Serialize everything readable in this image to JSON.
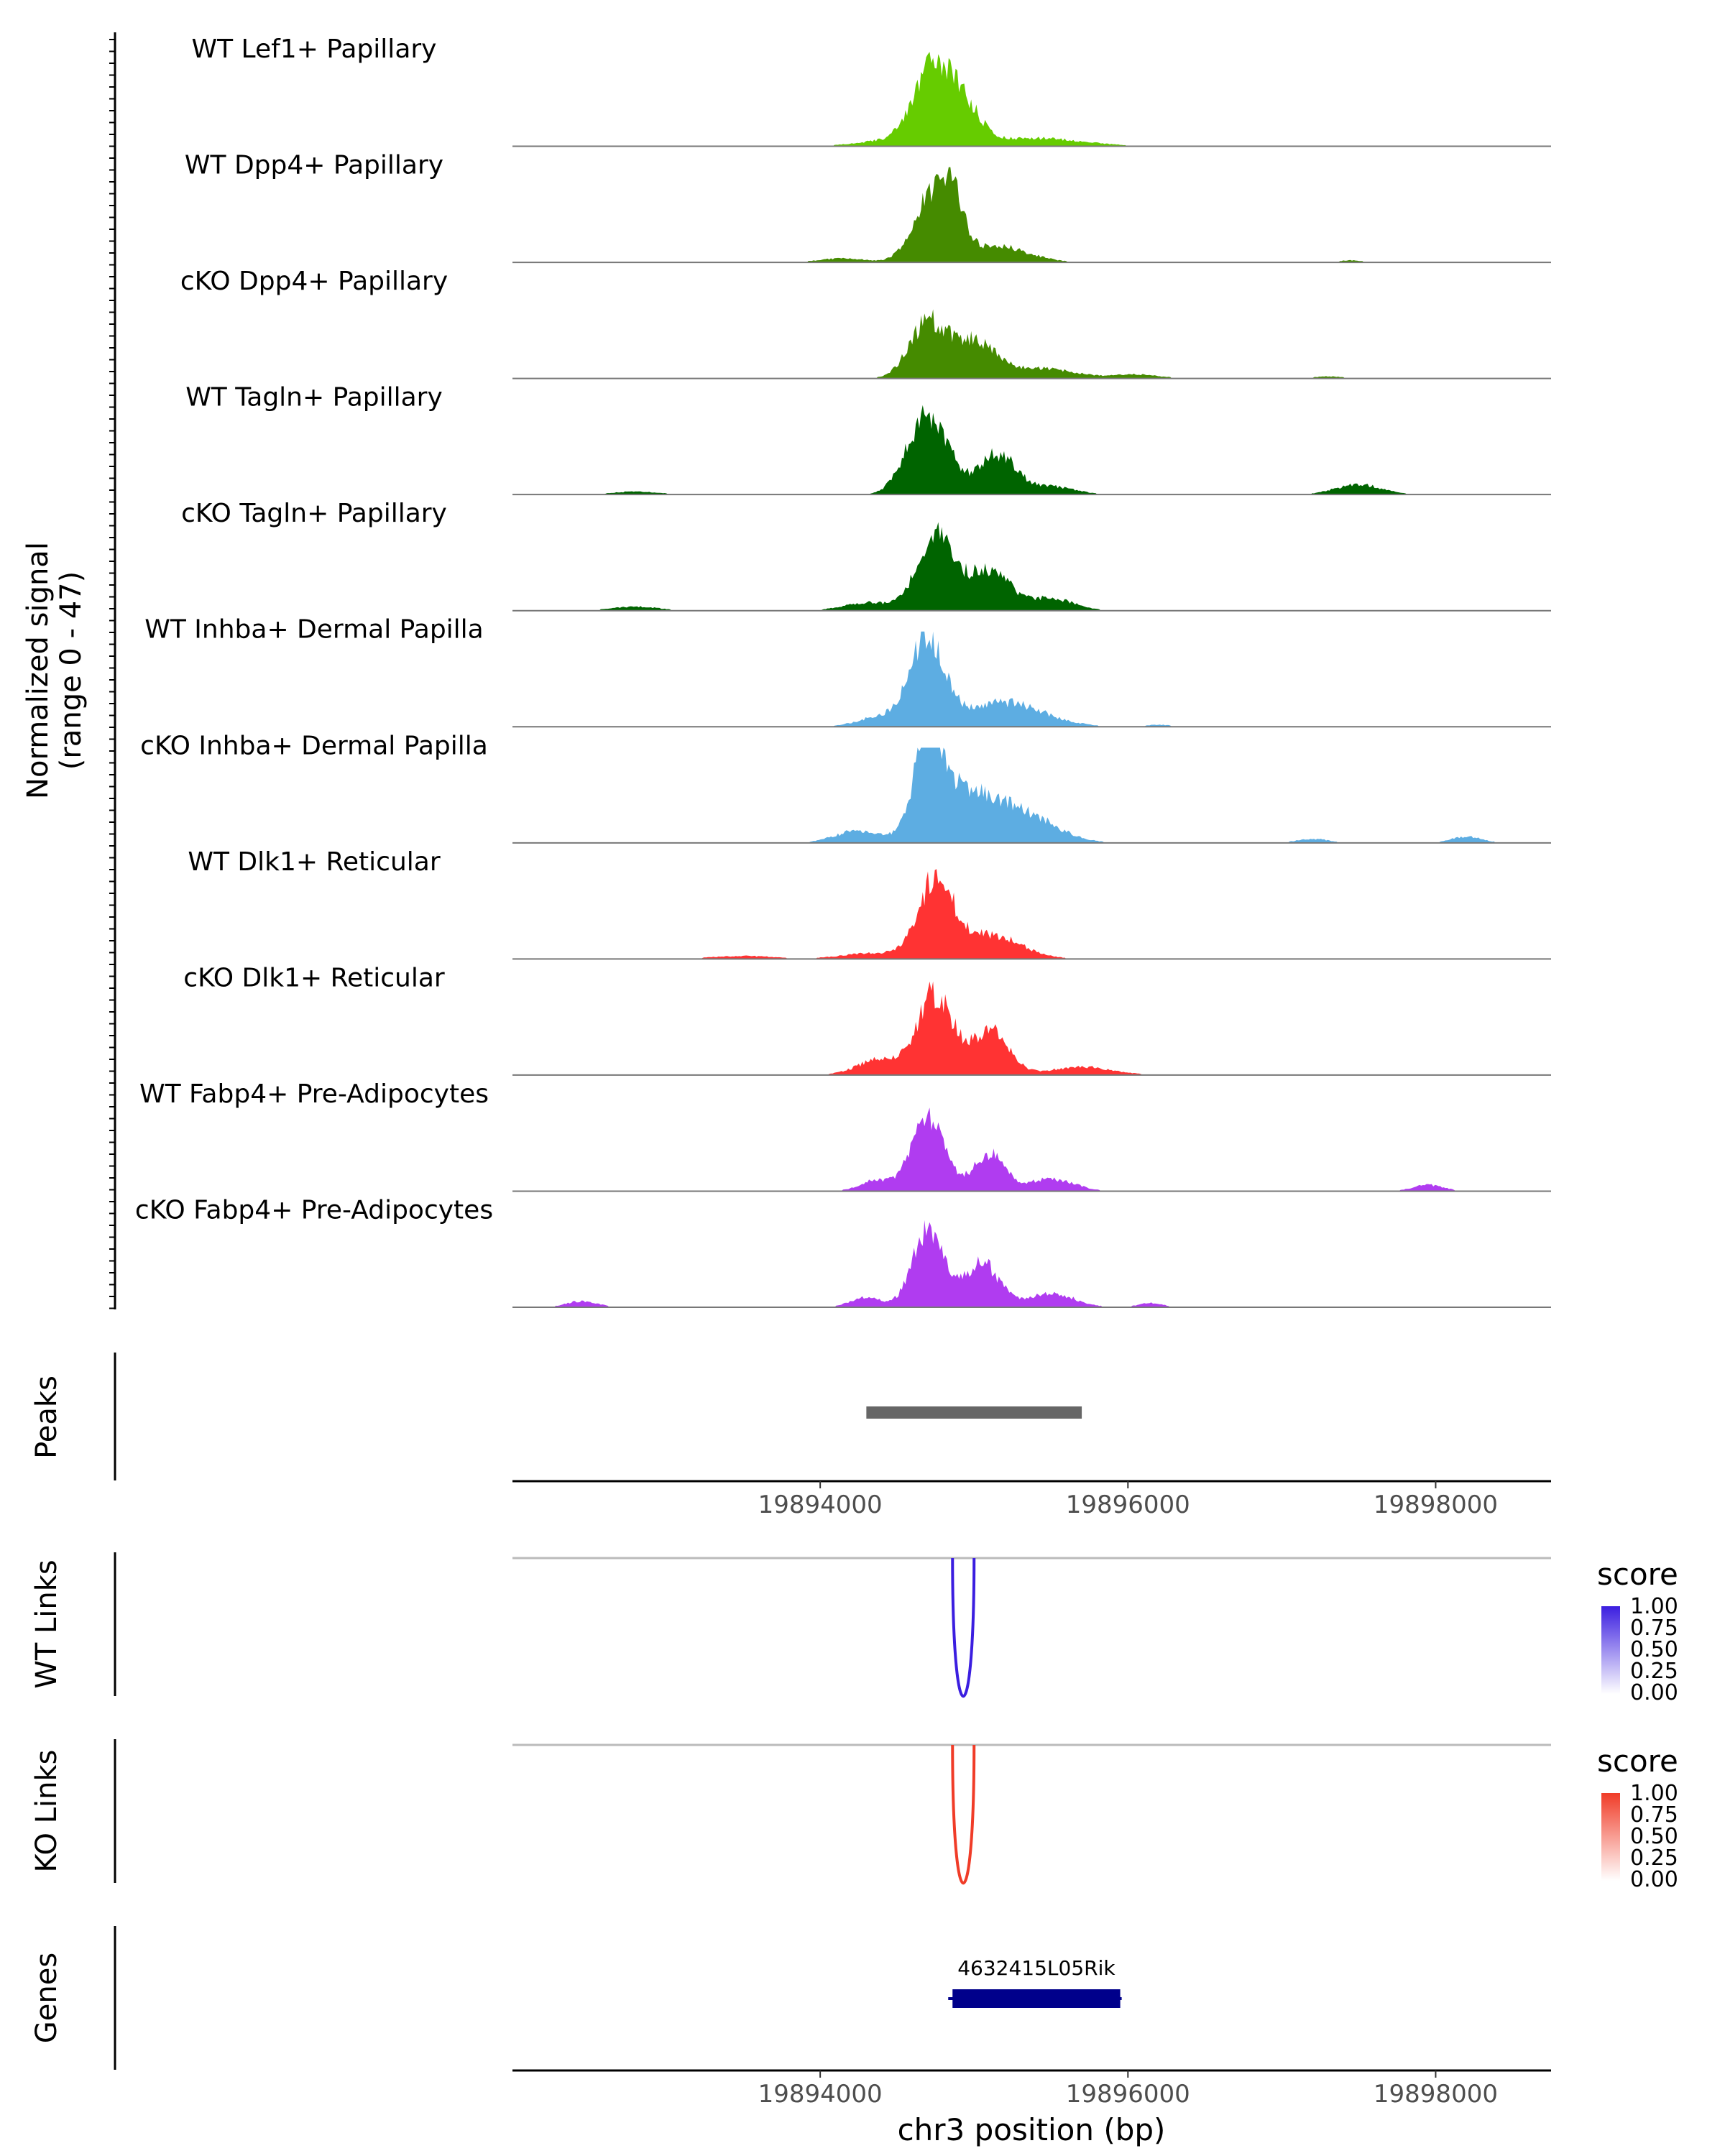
{
  "chart_data": {
    "type": "area",
    "chromosome": "chr3",
    "xlim": [
      19892000,
      19898750
    ],
    "xticks": [
      19894000,
      19896000,
      19898000
    ],
    "xlabel": "chr3 position (bp)",
    "coverage": {
      "ylabel_line1": "Normalized signal",
      "ylabel_line2": "(range 0 - 47)",
      "ylim": [
        0,
        47
      ],
      "tracks": [
        {
          "name": "WT Lef1+ Papillary",
          "color": "#66cc00",
          "shape": {
            "peaks": [
              [
                19894700,
                32,
                110
              ],
              [
                19894900,
                24,
                120
              ],
              [
                19895400,
                4,
                300
              ],
              [
                19894450,
                3,
                200
              ]
            ]
          }
        },
        {
          "name": "WT Dpp4+ Papillary",
          "color": "#458b00",
          "shape": {
            "peaks": [
              [
                19894700,
                28,
                110
              ],
              [
                19894850,
                30,
                80
              ],
              [
                19895150,
                8,
                200
              ],
              [
                19894150,
                2,
                150
              ],
              [
                19897450,
                1,
                80
              ]
            ]
          }
        },
        {
          "name": "cKO Dpp4+ Papillary",
          "color": "#458b00",
          "shape": {
            "peaks": [
              [
                19894700,
                27,
                120
              ],
              [
                19895000,
                18,
                140
              ],
              [
                19895450,
                5,
                200
              ],
              [
                19896050,
                2,
                150
              ],
              [
                19897300,
                1,
                100
              ]
            ]
          }
        },
        {
          "name": "WT Tagln+ Papillary",
          "color": "#006400",
          "shape": {
            "peaks": [
              [
                19894700,
                40,
                130
              ],
              [
                19895150,
                20,
                120
              ],
              [
                19895500,
                4,
                150
              ],
              [
                19897500,
                5,
                150
              ],
              [
                19892800,
                1.5,
                150
              ]
            ]
          }
        },
        {
          "name": "cKO Tagln+ Papillary",
          "color": "#006400",
          "shape": {
            "peaks": [
              [
                19894750,
                37,
                120
              ],
              [
                19895100,
                20,
                130
              ],
              [
                19895500,
                6,
                150
              ],
              [
                19894300,
                4,
                150
              ],
              [
                19892800,
                2,
                150
              ]
            ]
          }
        },
        {
          "name": "WT Inhba+ Dermal Papilla",
          "color": "#5dade2",
          "shape": {
            "peaks": [
              [
                19894700,
                44,
                110
              ],
              [
                19895200,
                12,
                250
              ],
              [
                19894400,
                5,
                150
              ],
              [
                19896200,
                1,
                80
              ]
            ]
          }
        },
        {
          "name": "cKO Inhba+ Dermal Papilla",
          "color": "#5dade2",
          "shape": {
            "peaks": [
              [
                19894700,
                47,
                90
              ],
              [
                19894950,
                25,
                200
              ],
              [
                19895350,
                12,
                200
              ],
              [
                19894250,
                6,
                150
              ],
              [
                19898200,
                3,
                100
              ],
              [
                19897200,
                2,
                100
              ]
            ]
          }
        },
        {
          "name": "WT Dlk1+ Reticular",
          "color": "#ff3333",
          "shape": {
            "peaks": [
              [
                19894750,
                38,
                110
              ],
              [
                19895100,
                12,
                200
              ],
              [
                19894350,
                3,
                200
              ],
              [
                19893500,
                1.5,
                200
              ]
            ]
          }
        },
        {
          "name": "cKO Dlk1+ Reticular",
          "color": "#ff3333",
          "shape": {
            "peaks": [
              [
                19894750,
                40,
                110
              ],
              [
                19895100,
                22,
                120
              ],
              [
                19894400,
                8,
                150
              ],
              [
                19895700,
                4,
                200
              ]
            ]
          }
        },
        {
          "name": "WT Fabp4+ Pre-Adipocytes",
          "color": "#b03cf0",
          "shape": {
            "peaks": [
              [
                19894700,
                36,
                110
              ],
              [
                19895100,
                18,
                100
              ],
              [
                19895500,
                6,
                150
              ],
              [
                19894350,
                5,
                100
              ],
              [
                19897950,
                3,
                100
              ]
            ]
          }
        },
        {
          "name": "cKO Fabp4+ Pre-Adipocytes",
          "color": "#b03cf0",
          "shape": {
            "peaks": [
              [
                19894700,
                38,
                100
              ],
              [
                19895050,
                22,
                110
              ],
              [
                19895500,
                7,
                150
              ],
              [
                19894300,
                5,
                100
              ],
              [
                19892450,
                3,
                100
              ],
              [
                19896150,
                2,
                80
              ]
            ]
          }
        }
      ]
    },
    "peaks_track": {
      "label": "Peaks",
      "regions": [
        [
          19894300,
          19895700
        ]
      ]
    },
    "links": [
      {
        "label": "WT Links",
        "color": "#3b1ee0",
        "start": 19894860,
        "end": 19895000,
        "score": 1.0,
        "legend": {
          "title": "score",
          "ticks": [
            "1.00",
            "0.75",
            "0.50",
            "0.25",
            "0.00"
          ],
          "high_color": "#3b1ee0"
        }
      },
      {
        "label": "KO Links",
        "color": "#f03c28",
        "start": 19894860,
        "end": 19895000,
        "score": 1.0,
        "legend": {
          "title": "score",
          "ticks": [
            "1.00",
            "0.75",
            "0.50",
            "0.25",
            "0.00"
          ],
          "high_color": "#f03c28"
        }
      }
    ],
    "genes": {
      "label": "Genes",
      "color": "#00008b",
      "items": [
        {
          "name": "4632415L05Rik",
          "start": 19894860,
          "end": 19895950,
          "strand": "-"
        }
      ]
    }
  }
}
